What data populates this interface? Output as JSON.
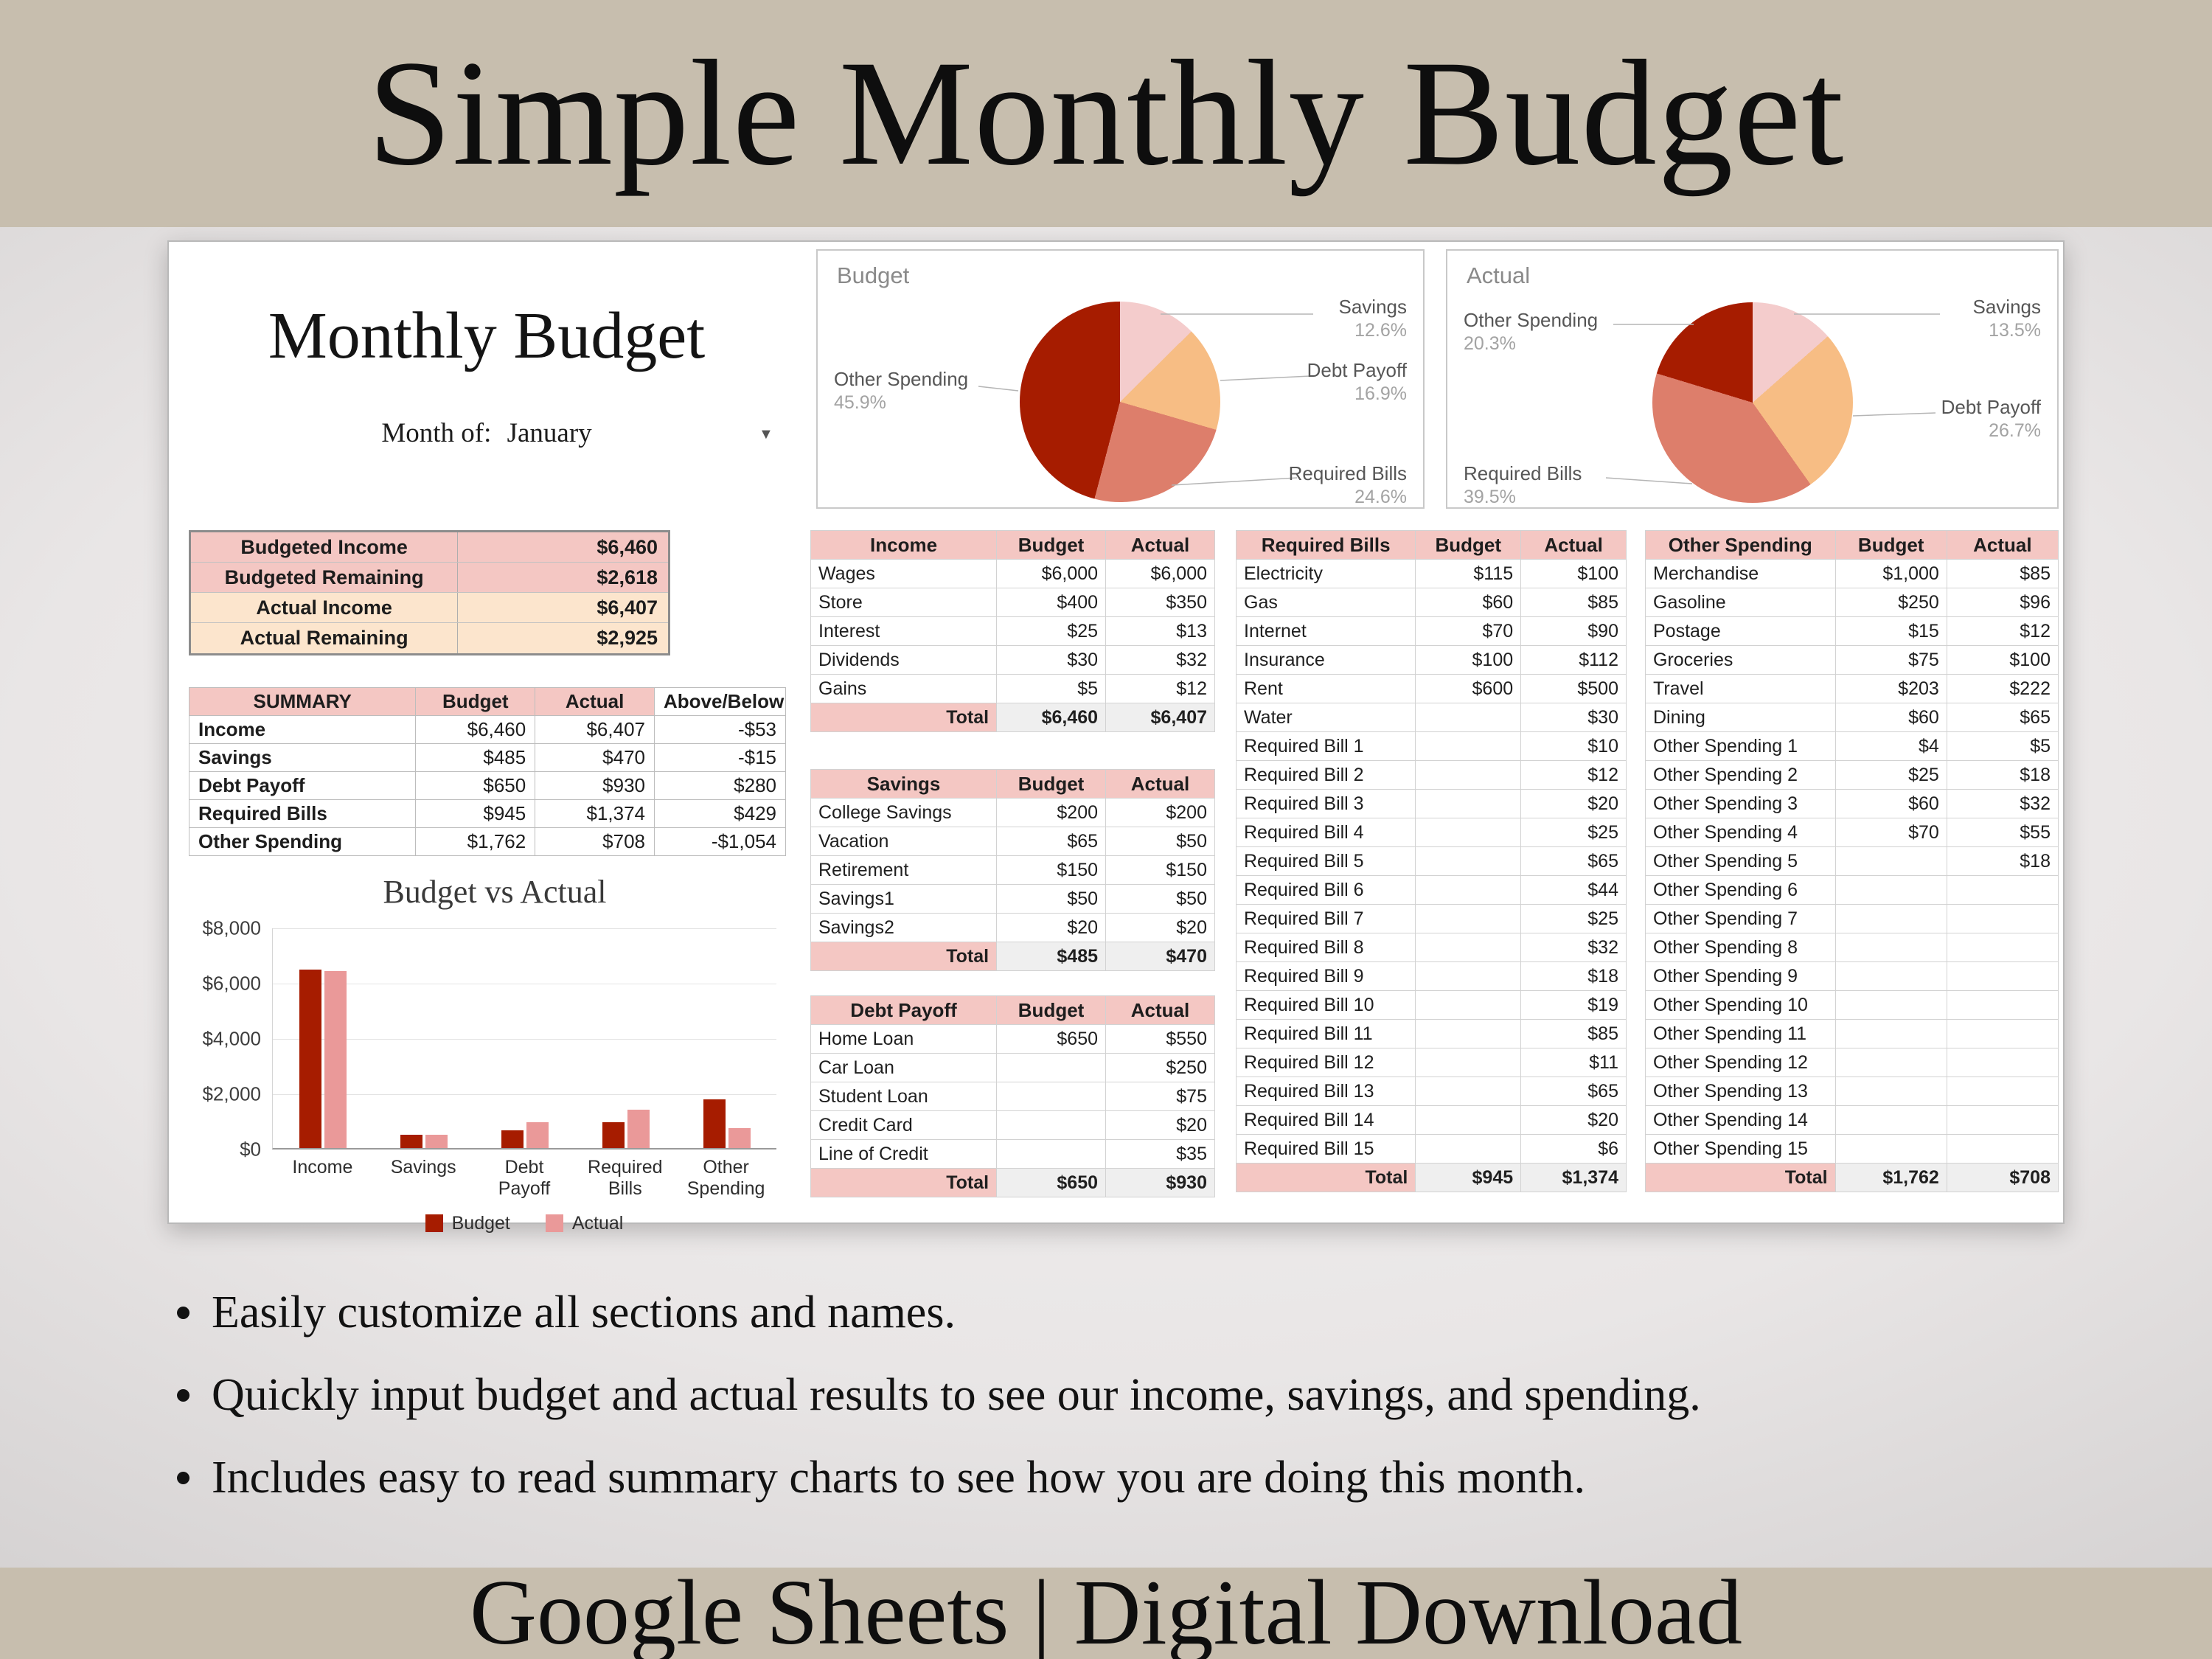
{
  "banner": {
    "title": "Simple Monthly Budget"
  },
  "bottom_banner": {
    "title": "Google Sheets | Digital Download"
  },
  "bullets": [
    "Easily customize all sections and names.",
    "Quickly input budget and actual results to see our income, savings, and spending.",
    "Includes easy to read summary charts to see how you are doing this month."
  ],
  "sheet": {
    "title": "Monthly Budget",
    "month_of_label": "Month of:",
    "month_value": "January",
    "overview": [
      {
        "label": "Budgeted Income",
        "value": "$6,460",
        "tone": "pink"
      },
      {
        "label": "Budgeted Remaining",
        "value": "$2,618",
        "tone": "pink"
      },
      {
        "label": "Actual Income",
        "value": "$6,407",
        "tone": "peach"
      },
      {
        "label": "Actual Remaining",
        "value": "$2,925",
        "tone": "peach"
      }
    ],
    "summary": {
      "headers": [
        "SUMMARY",
        "Budget",
        "Actual",
        "Above/Below"
      ],
      "rows": [
        [
          "Income",
          "$6,460",
          "$6,407",
          "-$53"
        ],
        [
          "Savings",
          "$485",
          "$470",
          "-$15"
        ],
        [
          "Debt Payoff",
          "$650",
          "$930",
          "$280"
        ],
        [
          "Required Bills",
          "$945",
          "$1,374",
          "$429"
        ],
        [
          "Other Spending",
          "$1,762",
          "$708",
          "-$1,054"
        ]
      ]
    },
    "tables": [
      {
        "id": "income",
        "title": "Income",
        "headers": [
          "Budget",
          "Actual"
        ],
        "rows": [
          [
            "Wages",
            "$6,000",
            "$6,000"
          ],
          [
            "Store",
            "$400",
            "$350"
          ],
          [
            "Interest",
            "$25",
            "$13"
          ],
          [
            "Dividends",
            "$30",
            "$32"
          ],
          [
            "Gains",
            "$5",
            "$12"
          ]
        ],
        "total": [
          "Total",
          "$6,460",
          "$6,407"
        ]
      },
      {
        "id": "savings",
        "title": "Savings",
        "headers": [
          "Budget",
          "Actual"
        ],
        "rows": [
          [
            "College Savings",
            "$200",
            "$200"
          ],
          [
            "Vacation",
            "$65",
            "$50"
          ],
          [
            "Retirement",
            "$150",
            "$150"
          ],
          [
            "Savings1",
            "$50",
            "$50"
          ],
          [
            "Savings2",
            "$20",
            "$20"
          ]
        ],
        "total": [
          "Total",
          "$485",
          "$470"
        ]
      },
      {
        "id": "debt-payoff",
        "title": "Debt Payoff",
        "headers": [
          "Budget",
          "Actual"
        ],
        "rows": [
          [
            "Home Loan",
            "$650",
            "$550"
          ],
          [
            "Car Loan",
            "",
            "$250"
          ],
          [
            "Student Loan",
            "",
            "$75"
          ],
          [
            "Credit Card",
            "",
            "$20"
          ],
          [
            "Line of Credit",
            "",
            "$35"
          ]
        ],
        "total": [
          "Total",
          "$650",
          "$930"
        ]
      },
      {
        "id": "required-bills",
        "title": "Required Bills",
        "headers": [
          "Budget",
          "Actual"
        ],
        "rows": [
          [
            "Electricity",
            "$115",
            "$100"
          ],
          [
            "Gas",
            "$60",
            "$85"
          ],
          [
            "Internet",
            "$70",
            "$90"
          ],
          [
            "Insurance",
            "$100",
            "$112"
          ],
          [
            "Rent",
            "$600",
            "$500"
          ],
          [
            "Water",
            "",
            "$30"
          ],
          [
            "Required Bill 1",
            "",
            "$10"
          ],
          [
            "Required Bill 2",
            "",
            "$12"
          ],
          [
            "Required Bill 3",
            "",
            "$20"
          ],
          [
            "Required Bill 4",
            "",
            "$25"
          ],
          [
            "Required Bill 5",
            "",
            "$65"
          ],
          [
            "Required Bill 6",
            "",
            "$44"
          ],
          [
            "Required Bill 7",
            "",
            "$25"
          ],
          [
            "Required Bill 8",
            "",
            "$32"
          ],
          [
            "Required Bill 9",
            "",
            "$18"
          ],
          [
            "Required Bill 10",
            "",
            "$19"
          ],
          [
            "Required Bill 11",
            "",
            "$85"
          ],
          [
            "Required Bill 12",
            "",
            "$11"
          ],
          [
            "Required Bill 13",
            "",
            "$65"
          ],
          [
            "Required Bill 14",
            "",
            "$20"
          ],
          [
            "Required Bill 15",
            "",
            "$6"
          ]
        ],
        "total": [
          "Total",
          "$945",
          "$1,374"
        ]
      },
      {
        "id": "other-spending",
        "title": "Other Spending",
        "headers": [
          "Budget",
          "Actual"
        ],
        "rows": [
          [
            "Merchandise",
            "$1,000",
            "$85"
          ],
          [
            "Gasoline",
            "$250",
            "$96"
          ],
          [
            "Postage",
            "$15",
            "$12"
          ],
          [
            "Groceries",
            "$75",
            "$100"
          ],
          [
            "Travel",
            "$203",
            "$222"
          ],
          [
            "Dining",
            "$60",
            "$65"
          ],
          [
            "Other Spending 1",
            "$4",
            "$5"
          ],
          [
            "Other Spending 2",
            "$25",
            "$18"
          ],
          [
            "Other Spending 3",
            "$60",
            "$32"
          ],
          [
            "Other Spending 4",
            "$70",
            "$55"
          ],
          [
            "Other Spending 5",
            "",
            "$18"
          ],
          [
            "Other Spending 6",
            "",
            ""
          ],
          [
            "Other Spending 7",
            "",
            ""
          ],
          [
            "Other Spending 8",
            "",
            ""
          ],
          [
            "Other Spending 9",
            "",
            ""
          ],
          [
            "Other Spending 10",
            "",
            ""
          ],
          [
            "Other Spending 11",
            "",
            ""
          ],
          [
            "Other Spending 12",
            "",
            ""
          ],
          [
            "Other Spending 13",
            "",
            ""
          ],
          [
            "Other Spending 14",
            "",
            ""
          ],
          [
            "Other Spending 15",
            "",
            ""
          ]
        ],
        "total": [
          "Total",
          "$1,762",
          "$708"
        ]
      }
    ]
  },
  "chart_data": [
    {
      "type": "pie",
      "title": "Budget",
      "slices": [
        {
          "label": "Savings",
          "pct": 12.6,
          "color": "#f4cccc"
        },
        {
          "label": "Debt Payoff",
          "pct": 16.9,
          "color": "#f7bd84"
        },
        {
          "label": "Required Bills",
          "pct": 24.6,
          "color": "#dd7e6b"
        },
        {
          "label": "Other Spending",
          "pct": 45.9,
          "color": "#a61c00"
        }
      ]
    },
    {
      "type": "pie",
      "title": "Actual",
      "slices": [
        {
          "label": "Savings",
          "pct": 13.5,
          "color": "#f4cccc"
        },
        {
          "label": "Debt Payoff",
          "pct": 26.7,
          "color": "#f7bd84"
        },
        {
          "label": "Required Bills",
          "pct": 39.5,
          "color": "#dd7e6b"
        },
        {
          "label": "Other Spending",
          "pct": 20.3,
          "color": "#a61c00"
        }
      ]
    },
    {
      "type": "bar",
      "title": "Budget vs Actual",
      "categories": [
        "Income",
        "Savings",
        "Debt Payoff",
        "Required Bills",
        "Other Spending"
      ],
      "series": [
        {
          "name": "Budget",
          "color": "#a61c00",
          "values": [
            6460,
            485,
            650,
            945,
            1762
          ]
        },
        {
          "name": "Actual",
          "color": "#ea9999",
          "values": [
            6407,
            470,
            930,
            1374,
            708
          ]
        }
      ],
      "ylim": [
        0,
        8000
      ],
      "yticks": [
        0,
        2000,
        4000,
        6000,
        8000
      ],
      "legend_position": "bottom",
      "grid": true
    }
  ],
  "colors": {
    "banner_beige": "#c7beae",
    "header_pink": "#f4c7c3",
    "overview_peach": "#fce5cd",
    "total_gray": "#efefef",
    "dark_red": "#a61c00",
    "salmon": "#dd7e6b",
    "peach": "#f7bd84",
    "light_pink": "#f4cccc",
    "actual_pink": "#ea9999"
  }
}
